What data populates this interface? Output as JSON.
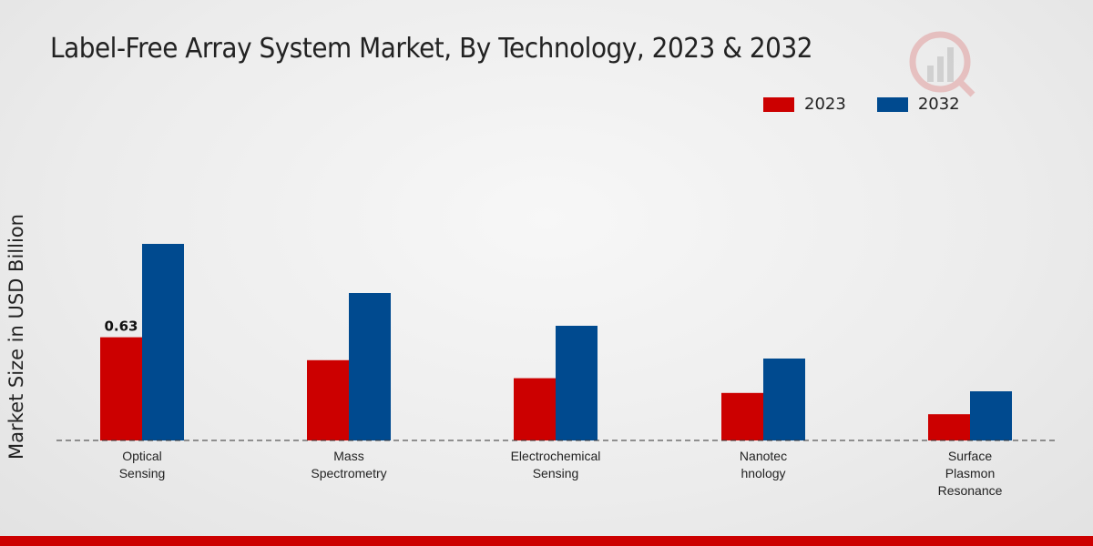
{
  "chart_data": {
    "type": "bar",
    "title": "Label-Free Array System Market, By Technology, 2023 & 2032",
    "ylabel": "Market Size in USD Billion",
    "xlabel": "",
    "categories": [
      [
        "Optical",
        "Sensing"
      ],
      [
        "Mass",
        "Spectrometry"
      ],
      [
        "Electrochemical",
        "Sensing"
      ],
      [
        "Nanotec",
        "hnology"
      ],
      [
        "Surface",
        "Plasmon",
        "Resonance"
      ]
    ],
    "series": [
      {
        "name": "2023",
        "color": "#cc0000",
        "values": [
          0.63,
          0.49,
          0.38,
          0.29,
          0.16
        ]
      },
      {
        "name": "2032",
        "color": "#004a8f",
        "values": [
          1.2,
          0.9,
          0.7,
          0.5,
          0.3
        ]
      }
    ],
    "data_labels": [
      {
        "series": 0,
        "index": 0,
        "text": "0.63"
      }
    ],
    "ylim": [
      0,
      1.8
    ],
    "grid": false,
    "legend_position": "top-right"
  },
  "colors": {
    "accent": "#cc0000",
    "secondary": "#004a8f"
  }
}
